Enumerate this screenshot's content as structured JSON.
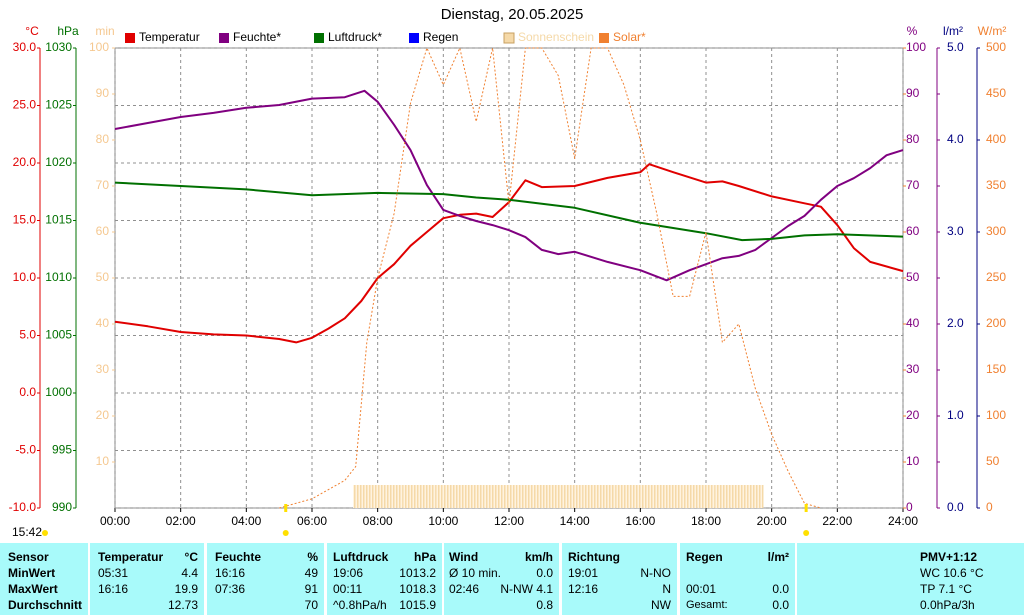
{
  "chart_data": {
    "type": "line",
    "title": "Dienstag, 20.05.2025",
    "current_time": "15:42",
    "xlim": [
      0,
      24
    ],
    "xticks": [
      {
        "value": 0,
        "label": "00:00"
      },
      {
        "value": 2,
        "label": "02:00"
      },
      {
        "value": 4,
        "label": "04:00"
      },
      {
        "value": 6,
        "label": "06:00"
      },
      {
        "value": 8,
        "label": "08:00"
      },
      {
        "value": 10,
        "label": "10:00"
      },
      {
        "value": 12,
        "label": "12:00"
      },
      {
        "value": 14,
        "label": "14:00"
      },
      {
        "value": 16,
        "label": "16:00"
      },
      {
        "value": 18,
        "label": "18:00"
      },
      {
        "value": 20,
        "label": "20:00"
      },
      {
        "value": 22,
        "label": "22:00"
      },
      {
        "value": 24,
        "label": "24:00"
      }
    ],
    "grid": true,
    "sun_markers": [
      5.2,
      21.05
    ],
    "axes": [
      {
        "label": "°C",
        "side": "left",
        "color": "#e00000",
        "lim": [
          -10,
          30
        ],
        "ticks": [
          {
            "value": -10,
            "label": "-10.0"
          },
          {
            "value": -5,
            "label": "-5.0"
          },
          {
            "value": 0,
            "label": "0.0"
          },
          {
            "value": 5,
            "label": "5.0"
          },
          {
            "value": 10,
            "label": "10.0"
          },
          {
            "value": 15,
            "label": "15.0"
          },
          {
            "value": 20,
            "label": "20.0"
          },
          {
            "value": 25,
            "label": "25.0"
          },
          {
            "value": 30,
            "label": "30.0"
          }
        ]
      },
      {
        "label": "hPa",
        "side": "left",
        "color": "#007000",
        "lim": [
          990,
          1030
        ],
        "ticks": [
          990,
          995,
          1000,
          1005,
          1010,
          1015,
          1020,
          1025,
          1030
        ]
      },
      {
        "label": "min",
        "side": "left",
        "color": "#f5c890",
        "lim": [
          0,
          100
        ],
        "ticks": [
          10,
          20,
          30,
          40,
          50,
          60,
          70,
          80,
          90,
          100
        ]
      },
      {
        "label": "%",
        "side": "right",
        "color": "#800080",
        "lim": [
          0,
          100
        ],
        "ticks": [
          0,
          10,
          20,
          30,
          40,
          50,
          60,
          70,
          80,
          90,
          100
        ]
      },
      {
        "label": "l/m²",
        "side": "right",
        "color": "#000080",
        "lim": [
          0,
          5
        ],
        "ticks": [
          {
            "value": 0,
            "label": "0.0"
          },
          {
            "value": 1,
            "label": "1.0"
          },
          {
            "value": 2,
            "label": "2.0"
          },
          {
            "value": 3,
            "label": "3.0"
          },
          {
            "value": 4,
            "label": "4.0"
          },
          {
            "value": 5,
            "label": "5.0"
          }
        ]
      },
      {
        "label": "W/m²",
        "side": "right",
        "color": "#f08030",
        "lim": [
          0,
          500
        ],
        "ticks": [
          0,
          50,
          100,
          150,
          200,
          250,
          300,
          350,
          400,
          450,
          500
        ]
      }
    ],
    "series": [
      {
        "name": "Temperatur",
        "color": "#e00000",
        "axis": 0,
        "style": "line",
        "x": [
          0,
          1,
          2,
          3,
          4,
          5,
          5.52,
          6,
          6.5,
          7,
          7.5,
          8,
          8.5,
          9,
          9.5,
          10,
          10.5,
          11,
          11.5,
          12,
          12.5,
          13,
          14,
          15,
          16,
          16.27,
          17,
          18,
          18.5,
          19,
          20,
          21,
          21.5,
          22,
          22.5,
          23,
          24
        ],
        "values": [
          6.2,
          5.8,
          5.3,
          5.1,
          5.0,
          4.7,
          4.4,
          4.8,
          5.6,
          6.5,
          8.0,
          10.0,
          11.2,
          12.8,
          14.0,
          15.2,
          15.5,
          15.6,
          15.3,
          16.6,
          18.5,
          17.9,
          18.0,
          18.7,
          19.2,
          19.9,
          19.2,
          18.3,
          18.4,
          18.0,
          17.1,
          16.5,
          16.2,
          14.6,
          12.6,
          11.4,
          10.6
        ]
      },
      {
        "name": "Feuchte*",
        "color": "#800080",
        "axis": 3,
        "style": "line",
        "x": [
          0,
          1,
          2,
          3,
          4,
          5,
          6,
          7,
          7.6,
          8,
          8.5,
          9,
          9.5,
          10,
          10.5,
          11,
          11.5,
          12,
          12.5,
          13,
          13.5,
          14,
          15,
          16,
          16.8,
          17.5,
          18,
          18.5,
          19,
          19.5,
          20,
          20.5,
          21,
          21.5,
          22,
          22.5,
          23,
          23.5,
          24
        ],
        "values": [
          82.4,
          83.7,
          85,
          85.9,
          87,
          87.6,
          89,
          89.3,
          90.7,
          88.3,
          83.3,
          77.8,
          70.2,
          64.8,
          63.5,
          62.4,
          61.5,
          60.4,
          58.9,
          56.1,
          55.2,
          55.7,
          53.5,
          51.7,
          49.5,
          51.7,
          53,
          54.3,
          54.8,
          56.1,
          58.7,
          61.3,
          63.5,
          67,
          70,
          71.7,
          73.9,
          76.7,
          77.8
        ]
      },
      {
        "name": "Luftdruck*",
        "color": "#007000",
        "axis": 1,
        "style": "line",
        "x": [
          0,
          2,
          4,
          6,
          8,
          10,
          11,
          12,
          14,
          16,
          18,
          19.1,
          20,
          21,
          22,
          24
        ],
        "values": [
          1018.3,
          1018.0,
          1017.7,
          1017.2,
          1017.4,
          1017.3,
          1017.0,
          1016.8,
          1016.1,
          1014.8,
          1013.9,
          1013.3,
          1013.4,
          1013.7,
          1013.8,
          1013.6
        ]
      },
      {
        "name": "Regen",
        "color": "#0000ff",
        "axis": 4,
        "style": "bars",
        "x": [],
        "values": []
      },
      {
        "name": "Sonnenschein",
        "color": "#f5d9a8",
        "axis": 2,
        "style": "bars",
        "x": [
          7.25,
          7.75,
          8.25,
          8.75,
          9.25,
          9.75,
          10.25,
          10.75,
          11.25,
          11.75,
          12.25,
          12.75,
          13.25,
          13.75,
          14.25,
          14.75,
          15.25,
          15.75,
          16.25,
          16.75,
          17.25,
          17.75,
          18.25,
          18.75,
          19.25
        ],
        "values": [
          5,
          5,
          5,
          5,
          5,
          5,
          5,
          5,
          5,
          5,
          5,
          5,
          5,
          5,
          5,
          5,
          5,
          5,
          5,
          5,
          5,
          5,
          5,
          5,
          5
        ]
      },
      {
        "name": "Solar*",
        "color": "#f08030",
        "axis": 5,
        "style": "dashed",
        "x": [
          5,
          6,
          7,
          7.33,
          7.67,
          8,
          8.5,
          9,
          9.5,
          10,
          10.5,
          11,
          11.5,
          12,
          12.5,
          13,
          13.5,
          14,
          14.5,
          15,
          15.5,
          16,
          16.5,
          17,
          17.5,
          18,
          18.5,
          19,
          19.5,
          20,
          20.5,
          21,
          21.5
        ],
        "values": [
          0,
          10,
          30,
          45,
          180,
          250,
          320,
          440,
          500,
          460,
          500,
          420,
          500,
          330,
          500,
          500,
          470,
          380,
          500,
          500,
          460,
          400,
          320,
          230,
          230,
          300,
          180,
          200,
          130,
          80,
          40,
          5,
          0
        ]
      }
    ]
  },
  "table": {
    "header": [
      {
        "l": "Sensor"
      },
      {
        "l": "Temperatur",
        "r": "°C"
      },
      {
        "l": "Feuchte",
        "r": "%"
      },
      {
        "l": "Luftdruck",
        "r": "hPa"
      },
      {
        "l": "Wind",
        "r": "km/h"
      },
      {
        "l": "Richtung"
      },
      {
        "l": "Regen",
        "r": "l/m²"
      },
      {
        "l": "PMV+1:12"
      }
    ],
    "rows": [
      [
        {
          "l": "MinWert"
        },
        {
          "l": "05:31",
          "r": "4.4"
        },
        {
          "l": "16:16",
          "r": "49"
        },
        {
          "l": "19:06",
          "r": "1013.2"
        },
        {
          "l": "Ø 10 min.",
          "r": "0.0"
        },
        {
          "l": "19:01",
          "r": "N-NO"
        },
        {},
        {
          "l": "WC 10.6 °C"
        }
      ],
      [
        {
          "l": "MaxWert"
        },
        {
          "l": "16:16",
          "r": "19.9"
        },
        {
          "l": "07:36",
          "r": "91"
        },
        {
          "l": "00:11",
          "r": "1018.3"
        },
        {
          "l": "02:46",
          "r": "N-NW 4.1"
        },
        {
          "l": "12:16",
          "r": "N"
        },
        {
          "l": "00:01",
          "r": "0.0"
        },
        {
          "l": "TP 7.1 °C"
        }
      ],
      [
        {
          "l": "Durchschnitt"
        },
        {
          "r": "12.73"
        },
        {
          "r": "70"
        },
        {
          "l": "^0.8hPa/h",
          "r": "1015.9"
        },
        {
          "r": "0.8"
        },
        {
          "r": "NW"
        },
        {
          "l": "Gesamt:",
          "r": "0.0"
        },
        {
          "l": "0.0hPa/3h"
        }
      ]
    ]
  }
}
